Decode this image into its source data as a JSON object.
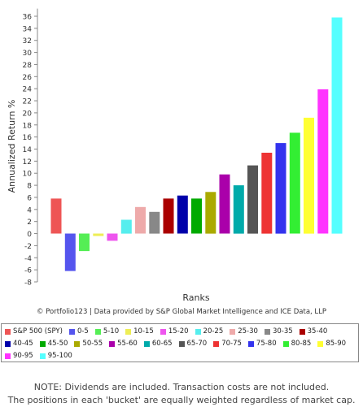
{
  "chart_data": {
    "type": "bar",
    "xlabel": "Ranks",
    "ylabel": "Annualized Return %",
    "ylim": [
      -8,
      37
    ],
    "yticks": [
      -8,
      -6,
      -4,
      -2,
      0,
      2,
      4,
      6,
      8,
      10,
      12,
      14,
      16,
      18,
      20,
      22,
      24,
      26,
      28,
      30,
      32,
      34,
      36
    ],
    "categories": [
      "S&P 500 (SPY)",
      "0-5",
      "5-10",
      "10-15",
      "15-20",
      "20-25",
      "25-30",
      "30-35",
      "35-40",
      "40-45",
      "45-50",
      "50-55",
      "55-60",
      "60-65",
      "65-70",
      "70-75",
      "75-80",
      "80-85",
      "85-90",
      "90-95",
      "95-100"
    ],
    "values": [
      5.8,
      -6.2,
      -2.9,
      -0.4,
      -1.2,
      2.3,
      4.4,
      3.6,
      5.8,
      6.3,
      5.8,
      6.9,
      9.8,
      8.0,
      11.3,
      13.4,
      15.0,
      16.7,
      19.2,
      23.9,
      35.8
    ],
    "colors": [
      "#ee5555",
      "#5555ee",
      "#55ee55",
      "#eeee55",
      "#ee55ee",
      "#55eeee",
      "#eeaaaa",
      "#888888",
      "#aa0000",
      "#0000aa",
      "#00aa00",
      "#aaaa00",
      "#aa00aa",
      "#00aaaa",
      "#555555",
      "#ee3333",
      "#3333ee",
      "#33ee33",
      "#ffff33",
      "#ff33ff",
      "#55ffff"
    ],
    "grid": false,
    "legend_position": "bottom"
  },
  "credit": "© Portfolio123 | Data provided by S&P Global Market Intelligence and ICE Data, LLP",
  "note_line1": "NOTE: Dividends are included. Transaction costs are not included.",
  "note_line2": "The positions in each 'bucket' are equally weighted regardless of market cap."
}
